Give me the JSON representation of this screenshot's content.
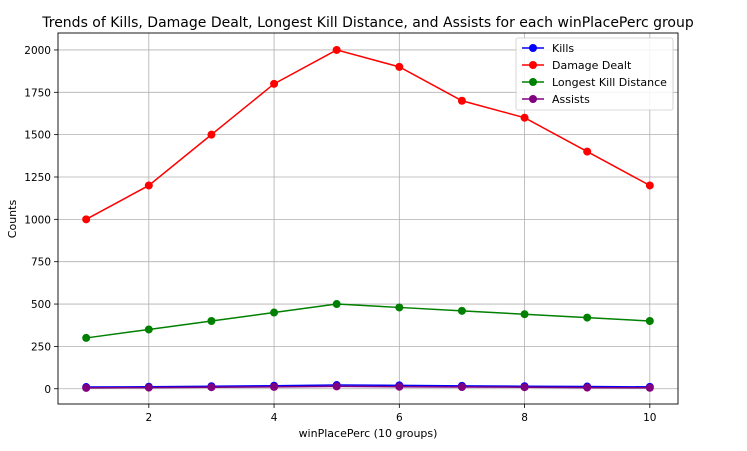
{
  "chart_data": {
    "type": "line",
    "title": "Trends of Kills, Damage Dealt, Longest Kill Distance, and Assists for each winPlacePerc group",
    "xlabel": "winPlacePerc (10 groups)",
    "ylabel": "Counts",
    "x": [
      1,
      2,
      3,
      4,
      5,
      6,
      7,
      8,
      9,
      10
    ],
    "xlim": [
      0.55,
      10.45
    ],
    "ylim": [
      -90,
      2100
    ],
    "xticks": [
      2,
      4,
      6,
      8,
      10
    ],
    "yticks": [
      0,
      250,
      500,
      750,
      1000,
      1250,
      1500,
      1750,
      2000
    ],
    "grid": true,
    "legend_position": "top-right",
    "series": [
      {
        "name": "Kills",
        "color": "#0000ff",
        "values": [
          10,
          12,
          15,
          18,
          22,
          20,
          17,
          15,
          13,
          11
        ]
      },
      {
        "name": "Damage Dealt",
        "color": "#ff0000",
        "values": [
          1000,
          1200,
          1500,
          1800,
          2000,
          1900,
          1700,
          1600,
          1400,
          1200
        ]
      },
      {
        "name": "Longest Kill Distance",
        "color": "#008000",
        "values": [
          300,
          350,
          400,
          450,
          500,
          480,
          460,
          440,
          420,
          400
        ]
      },
      {
        "name": "Assists",
        "color": "#800080",
        "values": [
          5,
          7,
          9,
          11,
          14,
          12,
          10,
          9,
          7,
          6
        ]
      }
    ]
  }
}
